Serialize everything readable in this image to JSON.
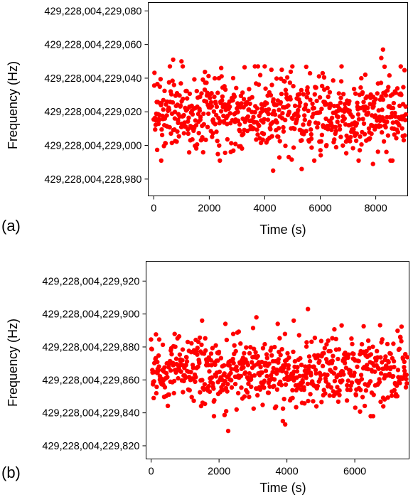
{
  "chart_data": [
    {
      "type": "scatter",
      "panel_label": "(a)",
      "xlabel": "Time (s)",
      "ylabel": "Frequency (Hz)",
      "xlim": [
        -200,
        9150
      ],
      "ylim": [
        429228004228970,
        429228004229085
      ],
      "xticks": [
        0,
        2000,
        4000,
        6000,
        8000
      ],
      "xtick_labels": [
        "0",
        "2000",
        "4000",
        "6000",
        "8000"
      ],
      "yticks": [
        429228004228980,
        429228004229000,
        429228004229020,
        429228004229040,
        429228004229060,
        429228004229080
      ],
      "ytick_labels": [
        "429,228,004,228,980",
        "429,228,004,229,000",
        "429,228,004,229,020",
        "429,228,004,229,040",
        "429,228,004,229,060",
        "429,228,004,229,080"
      ],
      "marker_color": "#ff0000",
      "grid": false,
      "series": [
        {
          "x_start": 0,
          "x_step": 13,
          "count": 700,
          "seed": 7,
          "mean": 429228004229019,
          "stdev": 11,
          "outliers": [
            {
              "x": 4300,
              "y": 429228004228985
            },
            {
              "x": 5330,
              "y": 429228004228986
            },
            {
              "x": 8260,
              "y": 429228004229057
            },
            {
              "x": 8200,
              "y": 429228004229052
            },
            {
              "x": 2430,
              "y": 429228004229046
            },
            {
              "x": 4240,
              "y": 429228004229045
            },
            {
              "x": 700,
              "y": 429228004229051
            },
            {
              "x": 1000,
              "y": 429228004229050
            },
            {
              "x": 270,
              "y": 429228004228991
            },
            {
              "x": 7900,
              "y": 429228004228989
            },
            {
              "x": 8600,
              "y": 429228004228991
            }
          ]
        }
      ]
    },
    {
      "type": "scatter",
      "panel_label": "(b)",
      "xlabel": "Time (s)",
      "ylabel": "Frequency (Hz)",
      "xlim": [
        -150,
        7600
      ],
      "ylim": [
        429228004229812,
        429228004229932
      ],
      "xticks": [
        0,
        2000,
        4000,
        6000
      ],
      "xtick_labels": [
        "0",
        "2000",
        "4000",
        "6000"
      ],
      "yticks": [
        429228004229820,
        429228004229840,
        429228004229860,
        429228004229880,
        429228004229900,
        429228004229920
      ],
      "ytick_labels": [
        "429,228,004,229,820",
        "429,228,004,229,840",
        "429,228,004,229,860",
        "429,228,004,229,880",
        "429,228,004,229,900",
        "429,228,004,229,920"
      ],
      "marker_color": "#ff0000",
      "grid": false,
      "series": [
        {
          "x_start": 0,
          "x_step": 11,
          "count": 690,
          "seed": 19,
          "mean": 429228004229866,
          "stdev": 11,
          "outliers": [
            {
              "x": 2270,
              "y": 429228004229829
            },
            {
              "x": 4620,
              "y": 429228004229903
            },
            {
              "x": 3950,
              "y": 429228004229833
            },
            {
              "x": 3880,
              "y": 429228004229835
            },
            {
              "x": 3100,
              "y": 429228004229898
            },
            {
              "x": 4200,
              "y": 429228004229896
            },
            {
              "x": 1850,
              "y": 429228004229838
            },
            {
              "x": 1500,
              "y": 429228004229896
            }
          ]
        }
      ]
    }
  ]
}
